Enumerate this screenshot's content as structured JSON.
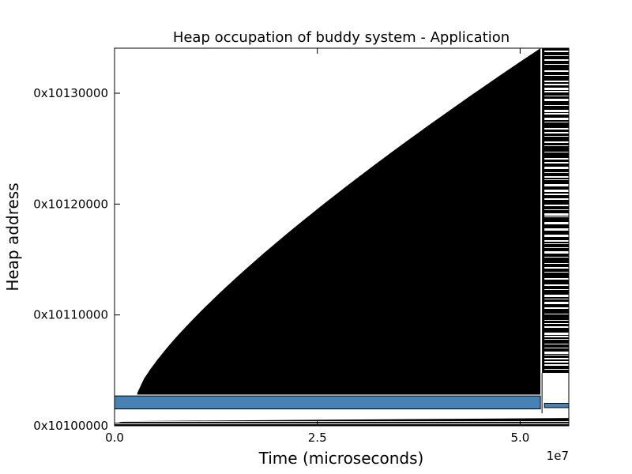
{
  "chart_data": {
    "type": "area",
    "title": "Heap occupation of buddy system - Application",
    "xlabel": "Time (microseconds)",
    "ylabel": "Heap address",
    "x_offset_label": "1e7",
    "xlim": [
      0,
      5.6
    ],
    "ylim_hex": [
      "0x10100000",
      "0x10136800"
    ],
    "x_ticks": [
      {
        "value": 0,
        "label": "0.0"
      },
      {
        "value": 2.5,
        "label": "2.5"
      },
      {
        "value": 5.0,
        "label": "5.0"
      }
    ],
    "y_ticks": [
      {
        "value": "0x10100000",
        "label": "0x10100000"
      },
      {
        "value": "0x10110000",
        "label": "0x10110000"
      },
      {
        "value": "0x10120000",
        "label": "0x10120000"
      },
      {
        "value": "0x10130000",
        "label": "0x10130000"
      }
    ],
    "regions": [
      {
        "name": "allocated-wedge",
        "color": "#000000",
        "x_start": 0.28,
        "x_end": 5.25,
        "y_bottom": "0x10104800",
        "y_top_start": "0x10104C00",
        "y_top_end": "0x10136800"
      },
      {
        "name": "bottom-band",
        "color": "#000000",
        "x_start": 0.05,
        "x_end": 5.6,
        "y_bottom": "0x10100000",
        "y_top": "0x10101200"
      },
      {
        "name": "blue-block",
        "color": "#4682b4",
        "x_start": 0.0,
        "x_end": 5.25,
        "y_bottom": "0x10102700",
        "y_top": "0x10104500"
      },
      {
        "name": "blue-block-small",
        "color": "#4682b4",
        "x_start": 5.3,
        "x_end": 5.6,
        "y_bottom": "0x10102A00",
        "y_top": "0x10103400"
      },
      {
        "name": "striped-tail",
        "color": "#000000",
        "x_start": 5.27,
        "x_end": 5.6,
        "y_bottom": "0x10107A00",
        "y_top": "0x10136800"
      }
    ],
    "grid": false,
    "legend": "none"
  }
}
